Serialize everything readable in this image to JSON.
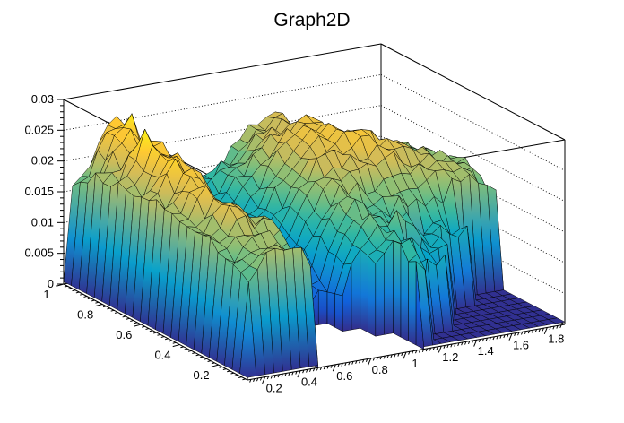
{
  "chart_data": {
    "type": "surface3d",
    "title": "Graph2D",
    "style": "ROOT TGraph2D SURF1 (colored mesh surface in 3D box, dotted z-grid on back walls)",
    "background": "#ffffff",
    "mesh_line_color": "#000000",
    "x_axis": {
      "min": 0.1,
      "max": 1.9,
      "tick_labels": [
        "0.2",
        "0.4",
        "0.6",
        "0.8",
        "1",
        "1.2",
        "1.4",
        "1.6",
        "1.8"
      ],
      "minor_step": 0.02
    },
    "y_axis": {
      "min": 0.05,
      "max": 1.0,
      "tick_labels": [
        "0.2",
        "0.4",
        "0.6",
        "0.8",
        "1"
      ],
      "minor_step": 0.02
    },
    "z_axis": {
      "min": 0,
      "max": 0.03,
      "tick_labels": [
        "0",
        "0.005",
        "0.01",
        "0.015",
        "0.02",
        "0.025",
        "0.03"
      ],
      "minor_step": 0.001,
      "grid": "dotted"
    },
    "palette": [
      "#352A87",
      "#0F5CDD",
      "#1481D6",
      "#06A4CA",
      "#2EB7A4",
      "#87BF77",
      "#D1BB59",
      "#FEC832",
      "#F9FB0E"
    ],
    "surface": {
      "comment": "z values in units of 0.001 (milli). null = no data (white gap). 0.4 = flat near-zero floor (dark blue).",
      "x_values": [
        0.1,
        0.2,
        0.3,
        0.4,
        0.5,
        0.6,
        0.7,
        0.8,
        0.9,
        1.0,
        1.1,
        1.2,
        1.3,
        1.4,
        1.5,
        1.6,
        1.7,
        1.8,
        1.9
      ],
      "y_values": [
        0.05,
        0.129,
        0.208,
        0.287,
        0.367,
        0.446,
        0.525,
        0.604,
        0.683,
        0.763,
        0.842,
        0.921,
        1.0
      ],
      "z_milli": [
        [
          0.4,
          0.4,
          0.4,
          0.4,
          0.4,
          null,
          null,
          null,
          null,
          null,
          0.4,
          0.4,
          0.4,
          0.4,
          0.4,
          0.4,
          0.4,
          0.4,
          0.4
        ],
        [
          0.4,
          16,
          19,
          18,
          15,
          null,
          null,
          null,
          null,
          null,
          13,
          0.4,
          0.4,
          0.4,
          0.4,
          0.4,
          0.4,
          0.4,
          0.4
        ],
        [
          0.4,
          17,
          20,
          19,
          17,
          null,
          null,
          null,
          null,
          12,
          15,
          0.4,
          11,
          0.4,
          0.4,
          0.4,
          0.4,
          0.4,
          0.4
        ],
        [
          0.4,
          18,
          21,
          20,
          19,
          8,
          null,
          null,
          6,
          13,
          16,
          14,
          0.4,
          12,
          0.4,
          0.4,
          0.4,
          0.4,
          0.4
        ],
        [
          0.4,
          18,
          22,
          21,
          19,
          7,
          5,
          4,
          6,
          14,
          17,
          16,
          15,
          0.4,
          13,
          12,
          0.4,
          0.4,
          0.4
        ],
        [
          0.4,
          19,
          23,
          21,
          18,
          9,
          6,
          5,
          8,
          15,
          18,
          17,
          16,
          17,
          18,
          19,
          19,
          18,
          16
        ],
        [
          0.4,
          20,
          24,
          22,
          17,
          11,
          8,
          7,
          10,
          16,
          19,
          20,
          21,
          22,
          21,
          20,
          20,
          19,
          17
        ],
        [
          0.4,
          20,
          25,
          23,
          18,
          13,
          10,
          9,
          12,
          17,
          21,
          22,
          23,
          24,
          22,
          21,
          20,
          19,
          18
        ],
        [
          0.4,
          19,
          26,
          24,
          19,
          14,
          12,
          11,
          13,
          18,
          21,
          23,
          24,
          23,
          22,
          20,
          19,
          18,
          17
        ],
        [
          0.4,
          20,
          27,
          25,
          20,
          15,
          13,
          12,
          14,
          18,
          22,
          23,
          24,
          22,
          21,
          19,
          18,
          17,
          16
        ],
        [
          0.4,
          19,
          24,
          23,
          19,
          15,
          13,
          12,
          15,
          18,
          21,
          22,
          23,
          21,
          20,
          18,
          17,
          16,
          15
        ],
        [
          0.4,
          18,
          25,
          27,
          20,
          16,
          14,
          13,
          15,
          17,
          20,
          21,
          22,
          20,
          19,
          17,
          16,
          15,
          14
        ],
        [
          0.4,
          17,
          22,
          25,
          19,
          16,
          14,
          13,
          14,
          16,
          19,
          20,
          21,
          19,
          18,
          16,
          15,
          14,
          13
        ]
      ]
    }
  }
}
